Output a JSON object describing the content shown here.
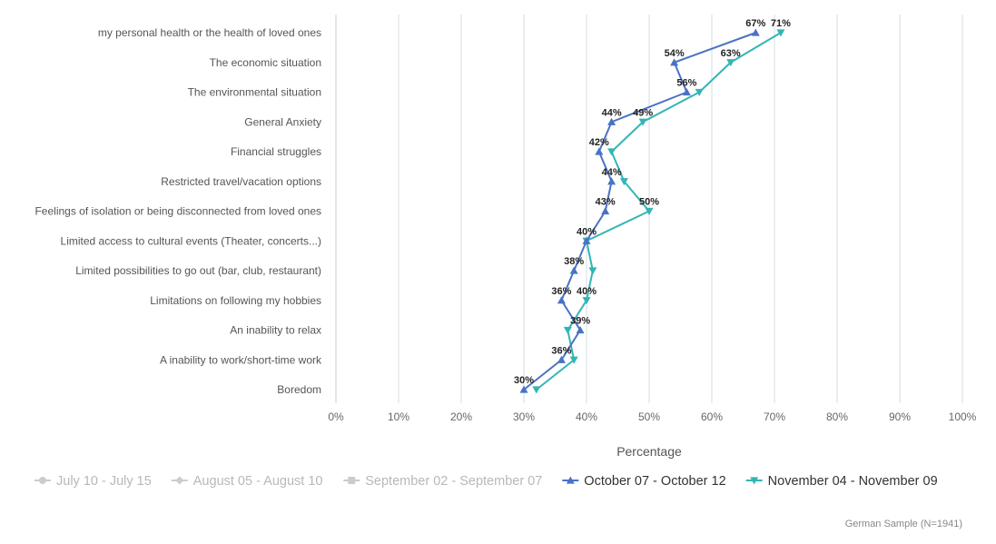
{
  "chart_data": {
    "type": "line",
    "orientation": "horizontal",
    "categories": [
      "my personal health or the health of loved ones",
      "The economic situation",
      "The environmental situation",
      "General Anxiety",
      "Financial struggles",
      "Restricted travel/vacation options",
      "Feelings of isolation or being disconnected from loved ones",
      "Limited access to cultural events (Theater, concerts...)",
      "Limited possibilities to go out (bar, club, restaurant)",
      "Limitations on following my hobbies",
      "An inability to relax",
      "A inability to work/short-time work",
      "Boredom"
    ],
    "xlabel": "Percentage",
    "xlim": [
      0,
      100
    ],
    "x_ticks": [
      "0%",
      "10%",
      "20%",
      "30%",
      "40%",
      "50%",
      "60%",
      "70%",
      "80%",
      "90%",
      "100%"
    ],
    "grid": true,
    "series": [
      {
        "name": "July 10 - July 15",
        "visible": false,
        "color": "#cccccc",
        "marker": "circle"
      },
      {
        "name": "August 05 - August 10",
        "visible": false,
        "color": "#cccccc",
        "marker": "diamond"
      },
      {
        "name": "September 02 - September 07",
        "visible": false,
        "color": "#cccccc",
        "marker": "square"
      },
      {
        "name": "October 07 - October 12",
        "visible": true,
        "color": "#4a72c4",
        "marker": "triangle-up",
        "values": [
          67,
          54,
          56,
          44,
          42,
          44,
          43,
          40,
          38,
          36,
          39,
          36,
          30
        ],
        "labels": [
          "67%",
          "54%",
          "56%",
          "44%",
          "42%",
          "44%",
          "43%",
          "40%",
          "38%",
          "36%",
          "39%",
          "36%",
          "30%"
        ]
      },
      {
        "name": "November 04 - November 09",
        "visible": true,
        "color": "#33b5b5",
        "marker": "triangle-down",
        "values": [
          71,
          63,
          58,
          49,
          44,
          46,
          50,
          40,
          41,
          40,
          37,
          38,
          32
        ],
        "labels": [
          "71%",
          "63%",
          "",
          "49%",
          "",
          "",
          "50%",
          "",
          "",
          "40%",
          "",
          "",
          ""
        ]
      }
    ],
    "legend_position": "bottom-left",
    "footnote": "German Sample (N=1941)"
  },
  "colors": {
    "grid": "#d6dde3",
    "inactive": "#cccccc",
    "inactive_text": "#b8b8b8",
    "active_text": "#333333"
  }
}
